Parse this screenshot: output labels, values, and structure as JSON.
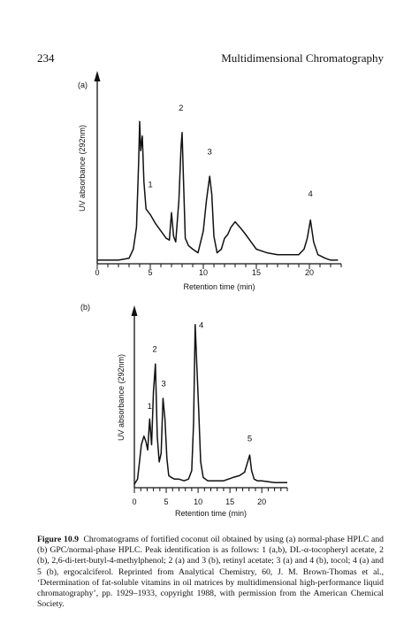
{
  "page": {
    "number": "234",
    "running_head": "Multidimensional Chromatography"
  },
  "chart_data": [
    {
      "type": "line",
      "panel_label": "(a)",
      "xlabel": "Retention time (min)",
      "ylabel": "UV absorbance (292nm)",
      "xlim": [
        0,
        23
      ],
      "x_ticks": [
        0,
        5,
        10,
        15,
        20
      ],
      "grid": false,
      "series": [
        {
          "x": [
            0.0,
            1.0,
            2.0,
            3.0,
            3.4,
            3.7,
            3.9,
            4.0,
            4.1,
            4.25,
            4.4,
            4.6,
            5.0,
            5.5,
            6.0,
            6.5,
            6.8,
            7.0,
            7.2,
            7.4,
            7.7,
            7.9,
            8.0,
            8.1,
            8.3,
            8.6,
            9.0,
            9.5,
            10.0,
            10.3,
            10.6,
            10.8,
            11.0,
            11.3,
            11.7,
            12.0,
            12.3,
            12.6,
            13.0,
            13.3,
            13.6,
            14.0,
            14.5,
            15.0,
            15.5,
            16.0,
            17.0,
            18.0,
            19.0,
            19.5,
            19.8,
            20.1,
            20.4,
            20.8,
            21.5,
            22.0,
            22.7
          ],
          "y": [
            0.02,
            0.02,
            0.02,
            0.03,
            0.08,
            0.2,
            0.55,
            0.78,
            0.62,
            0.7,
            0.45,
            0.3,
            0.27,
            0.22,
            0.18,
            0.14,
            0.13,
            0.28,
            0.15,
            0.12,
            0.35,
            0.64,
            0.72,
            0.52,
            0.14,
            0.1,
            0.08,
            0.06,
            0.18,
            0.35,
            0.48,
            0.38,
            0.15,
            0.06,
            0.08,
            0.14,
            0.16,
            0.2,
            0.23,
            0.21,
            0.19,
            0.16,
            0.12,
            0.08,
            0.07,
            0.06,
            0.05,
            0.05,
            0.05,
            0.08,
            0.14,
            0.24,
            0.12,
            0.05,
            0.03,
            0.02,
            0.02
          ]
        }
      ],
      "peak_labels": [
        {
          "label": "1",
          "x": 5.0,
          "y": 0.42
        },
        {
          "label": "2",
          "x": 7.9,
          "y": 0.84
        },
        {
          "label": "3",
          "x": 10.6,
          "y": 0.6
        },
        {
          "label": "4",
          "x": 20.1,
          "y": 0.37
        }
      ]
    },
    {
      "type": "line",
      "panel_label": "(b)",
      "xlabel": "Retention time (min)",
      "ylabel": "UV absorbance (292nm)",
      "xlim": [
        0,
        24
      ],
      "x_ticks": [
        0,
        5,
        10,
        15,
        20
      ],
      "grid": false,
      "series": [
        {
          "x": [
            0.0,
            0.5,
            0.8,
            1.1,
            1.5,
            1.8,
            2.1,
            2.4,
            2.7,
            3.0,
            3.3,
            3.6,
            3.9,
            4.2,
            4.5,
            4.8,
            5.1,
            5.4,
            5.8,
            6.3,
            7.0,
            7.8,
            8.5,
            9.0,
            9.3,
            9.55,
            9.8,
            10.1,
            10.4,
            10.8,
            11.5,
            12.5,
            14.0,
            15.5,
            16.5,
            17.3,
            17.7,
            18.1,
            18.4,
            18.8,
            19.3,
            20.0,
            22.0,
            24.0
          ],
          "y": [
            0.02,
            0.05,
            0.15,
            0.25,
            0.3,
            0.27,
            0.22,
            0.4,
            0.25,
            0.56,
            0.72,
            0.3,
            0.15,
            0.2,
            0.52,
            0.4,
            0.17,
            0.07,
            0.06,
            0.05,
            0.05,
            0.04,
            0.05,
            0.1,
            0.38,
            0.95,
            0.72,
            0.45,
            0.15,
            0.06,
            0.04,
            0.04,
            0.04,
            0.06,
            0.07,
            0.09,
            0.14,
            0.19,
            0.1,
            0.05,
            0.04,
            0.04,
            0.03,
            0.03
          ]
        }
      ],
      "peak_labels": [
        {
          "label": "1",
          "x": 2.4,
          "y": 0.46
        },
        {
          "label": "2",
          "x": 3.2,
          "y": 0.79
        },
        {
          "label": "3",
          "x": 4.6,
          "y": 0.59
        },
        {
          "label": "4",
          "x": 10.5,
          "y": 0.93
        },
        {
          "label": "5",
          "x": 18.1,
          "y": 0.27
        }
      ]
    }
  ],
  "caption": {
    "lead": "Figure 10.9",
    "text": "Chromatograms of fortified coconut oil obtained by using (a) normal-phase HPLC and (b) GPC/normal-phase HPLC. Peak identification is as follows: 1 (a,b), DL-α-tocopheryl acetate, 2 (b), 2,6-di-tert-butyl-4-methylphenol; 2 (a) and 3 (b), retinyl acetate; 3 (a) and 4 (b), tocol; 4 (a) and 5 (b), ergocalciferol. Reprinted from Analytical Chemistry, 60, J. M. Brown-Thomas et al., ‘Determination of fat-soluble vitamins in oil matrices by multidimensional high-performance liquid chromatography’, pp. 1929–1933, copyright 1988, with permission from the American Chemical Society."
  }
}
